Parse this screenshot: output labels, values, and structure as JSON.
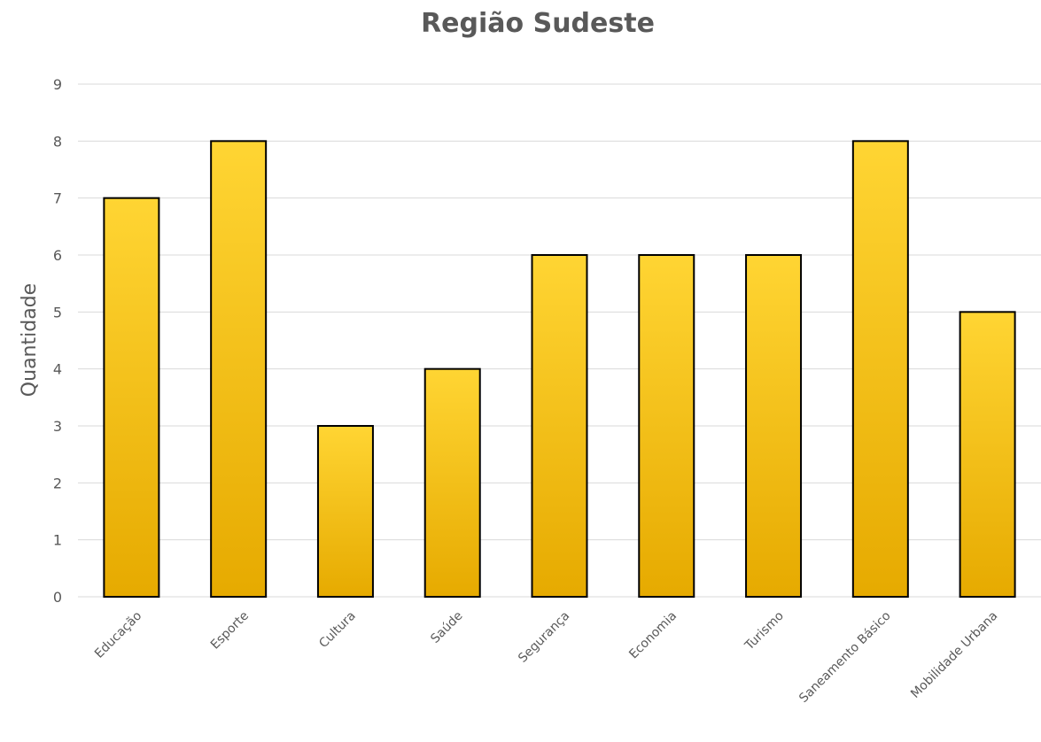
{
  "chart_data": {
    "type": "bar",
    "title": "Região Sudeste",
    "xlabel": "",
    "ylabel": "Quantidade",
    "categories": [
      "Educação",
      "Esporte",
      "Cultura",
      "Saúde",
      "Segurança",
      "Economia",
      "Turismo",
      "Saneamento Básico",
      "Mobilidade Urbana"
    ],
    "values": [
      7,
      8,
      3,
      4,
      6,
      6,
      6,
      8,
      5
    ],
    "ylim": [
      0,
      9
    ],
    "yticks": [
      "0",
      "1",
      "2",
      "3",
      "4",
      "5",
      "6",
      "7",
      "8",
      "9"
    ],
    "grid": true,
    "legend": "none",
    "colors": {
      "bar_top": "#ffd533",
      "bar_bottom": "#e6aa00",
      "bar_border": "#000000",
      "grid": "#d9d9d9",
      "text": "#595959"
    }
  }
}
